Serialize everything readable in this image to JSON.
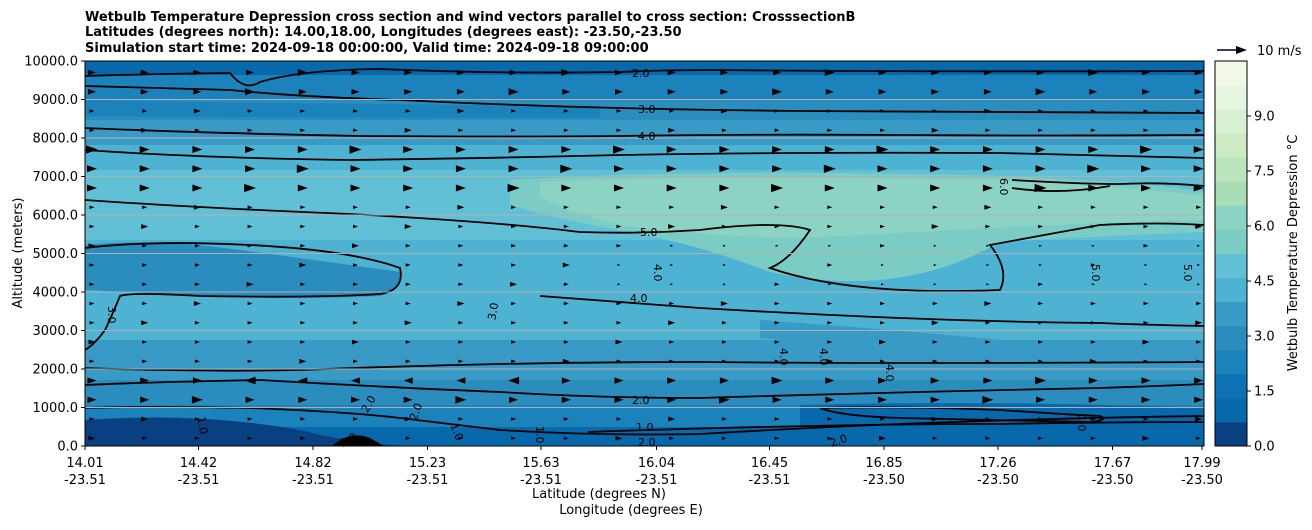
{
  "chart_data": {
    "type": "contour",
    "title_lines": [
      "Wetbulb Temperature Depression cross section and wind vectors parallel to cross section: CrosssectionB",
      "Latitudes (degrees north): 14.00,18.00, Longitudes (degrees east): -23.50,-23.50",
      "Simulation start time: 2024-09-18 00:00:00, Valid time: 2024-09-18 09:00:00"
    ],
    "ylabel": "Altitude (meters)",
    "xlabel_lat": "Latitude (degrees N)",
    "xlabel_lon": "Longitude (degrees E)",
    "ylim": [
      0,
      10000
    ],
    "yticks": [
      "0.0",
      "1000.0",
      "2000.0",
      "3000.0",
      "4000.0",
      "5000.0",
      "6000.0",
      "7000.0",
      "8000.0",
      "9000.0",
      "10000.0"
    ],
    "x_ticks": [
      {
        "lat": "14.01",
        "lon": "-23.51"
      },
      {
        "lat": "14.42",
        "lon": "-23.51"
      },
      {
        "lat": "14.82",
        "lon": "-23.51"
      },
      {
        "lat": "15.23",
        "lon": "-23.51"
      },
      {
        "lat": "15.63",
        "lon": "-23.51"
      },
      {
        "lat": "16.04",
        "lon": "-23.51"
      },
      {
        "lat": "16.45",
        "lon": "-23.51"
      },
      {
        "lat": "16.85",
        "lon": "-23.50"
      },
      {
        "lat": "17.26",
        "lon": "-23.50"
      },
      {
        "lat": "17.67",
        "lon": "-23.50"
      },
      {
        "lat": "17.99",
        "lon": "-23.50"
      }
    ],
    "colorbar": {
      "label": "Wetbulb Temperature Depression °C",
      "range": [
        0,
        10.5
      ],
      "ticks": [
        "0.0",
        "1.5",
        "3.0",
        "4.5",
        "6.0",
        "7.5",
        "9.0"
      ],
      "colors": [
        "#084081",
        "#0868ac",
        "#0d72b4",
        "#1c82bc",
        "#2b8cbe",
        "#3a9ac6",
        "#4eb3d3",
        "#62c0d6",
        "#7bccc4",
        "#8cd3c3",
        "#a8ddb5",
        "#bae4bc",
        "#ccebc5",
        "#d9f0d3",
        "#e5f5e0",
        "#f0f9e8"
      ]
    },
    "vector_key": {
      "label": "10 m/s",
      "speed": 10
    },
    "contour_lines": [
      {
        "level": "1.0",
        "labels": [
          "1.0",
          "1.0",
          "1.0",
          "1.0",
          "1.0"
        ]
      },
      {
        "level": "2.0",
        "labels": [
          "2.0",
          "2.0",
          "2.0",
          "2.0",
          "2.0",
          "2.0"
        ]
      },
      {
        "level": "3.0",
        "labels": [
          "3.0",
          "3.0",
          "3.0",
          "3.0"
        ]
      },
      {
        "level": "4.0",
        "labels": [
          "4.0",
          "4.0",
          "4.0",
          "4.0",
          "4.0",
          "4.0"
        ]
      },
      {
        "level": "5.0",
        "labels": [
          "5.0",
          "5.0",
          "5.0"
        ]
      },
      {
        "level": "6.0",
        "labels": [
          "6.0"
        ]
      }
    ],
    "field_summary": [
      {
        "altitude": 0,
        "value": 0.8
      },
      {
        "altitude": 1000,
        "value": 1.6
      },
      {
        "altitude": 2000,
        "value": 3.2
      },
      {
        "altitude": 3000,
        "value": 3.6
      },
      {
        "altitude": 4000,
        "value": 4.4
      },
      {
        "altitude": 5000,
        "value": 5.4
      },
      {
        "altitude": 6000,
        "value": 6.4
      },
      {
        "altitude": 7000,
        "value": 5.8
      },
      {
        "altitude": 8000,
        "value": 4.0
      },
      {
        "altitude": 9000,
        "value": 2.6
      },
      {
        "altitude": 10000,
        "value": 1.8
      }
    ]
  }
}
